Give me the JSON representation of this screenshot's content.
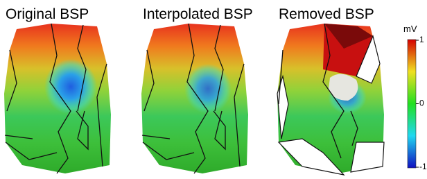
{
  "panels": [
    {
      "title": "Original BSP"
    },
    {
      "title": "Interpolated BSP"
    },
    {
      "title": "Removed BSP"
    }
  ],
  "colorbar": {
    "label": "mV",
    "lim": [
      -1,
      1
    ],
    "ticks": [
      1,
      0,
      -1
    ]
  }
}
